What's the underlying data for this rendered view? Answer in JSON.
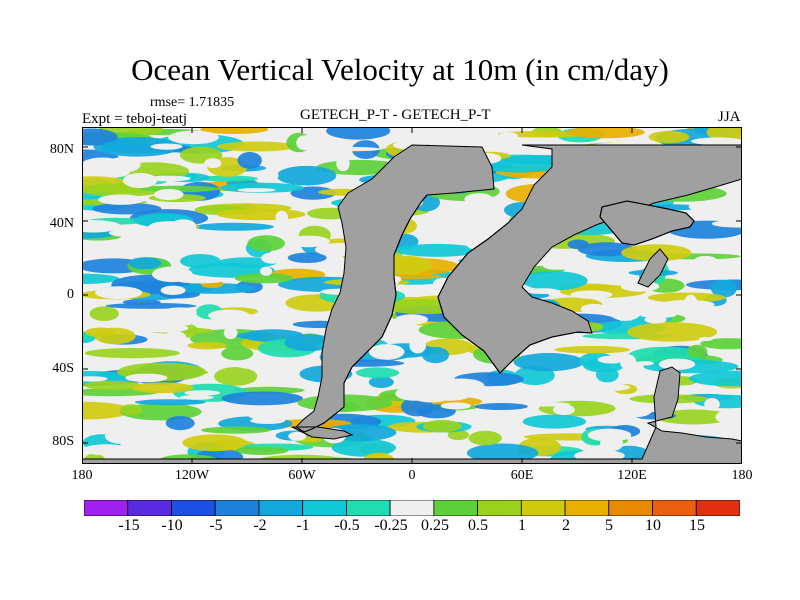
{
  "title": "Ocean Vertical Velocity at 10m (in cm/day)",
  "rmse": "rmse= 1.71835",
  "expt": "Expt = teboj-teatj",
  "center_label": "GETECH_P-T - GETECH_P-T",
  "season": "JJA",
  "lat_labels": [
    "80N",
    "40N",
    "0",
    "40S",
    "80S"
  ],
  "lon_labels": [
    "180",
    "120W",
    "60W",
    "0",
    "60E",
    "120E",
    "180"
  ],
  "colorbar": {
    "labels": [
      "-15",
      "-10",
      "-5",
      "-2",
      "-1",
      "-0.5",
      "-0.25",
      "0.25",
      "0.5",
      "1",
      "2",
      "5",
      "10",
      "15"
    ],
    "colors": [
      "#a020f0",
      "#5a2ae0",
      "#1e50e6",
      "#1e82dc",
      "#12a8dc",
      "#10c8d6",
      "#20dcb0",
      "#efefef",
      "#5ed13a",
      "#9ad21e",
      "#cfcc10",
      "#e8b000",
      "#e88a00",
      "#e86010",
      "#e03010"
    ]
  },
  "map_colors": {
    "land": "#a0a0a0",
    "ocean_neutral": "#efefef"
  }
}
